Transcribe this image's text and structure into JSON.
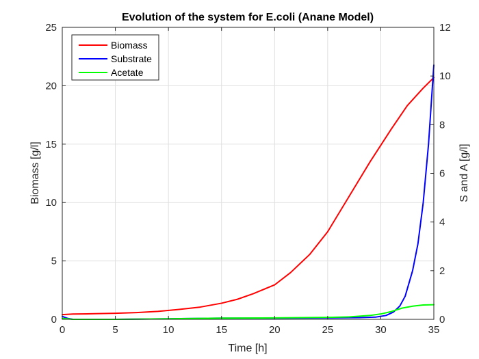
{
  "chart_data": {
    "type": "line",
    "title": "Evolution of the system for E.coli (Anane Model)",
    "xlabel": "Time [h]",
    "ylabel_left": "Biomass [g/l]",
    "ylabel_right": "S and A [g/l]",
    "xlim": [
      0,
      35
    ],
    "ylim_left": [
      0,
      25
    ],
    "ylim_right": [
      0,
      12
    ],
    "xticks": [
      "0",
      "5",
      "10",
      "15",
      "20",
      "25",
      "30",
      "35"
    ],
    "yticks_left": [
      "0",
      "5",
      "10",
      "15",
      "20",
      "25"
    ],
    "yticks_right": [
      "0",
      "2",
      "4",
      "6",
      "8",
      "10",
      "12"
    ],
    "grid": true,
    "legend_position": "top-left",
    "series": [
      {
        "name": "Biomass",
        "axis": "left",
        "color": "#ff0000",
        "x": [
          0,
          1,
          3,
          5,
          7,
          9,
          11,
          13,
          15,
          16.5,
          18,
          20,
          21.5,
          23.3,
          25,
          27,
          29,
          31,
          32.5,
          34,
          35
        ],
        "y": [
          0.4,
          0.45,
          0.48,
          0.52,
          0.58,
          0.68,
          0.85,
          1.05,
          1.38,
          1.72,
          2.2,
          2.95,
          4.0,
          5.55,
          7.5,
          10.5,
          13.5,
          16.3,
          18.3,
          19.8,
          20.7
        ]
      },
      {
        "name": "Substrate",
        "axis": "right",
        "color": "#0000ff",
        "x": [
          0,
          0.5,
          1,
          5,
          10,
          15,
          20,
          25,
          28,
          29.5,
          30.5,
          31.2,
          31.8,
          32.3,
          33,
          33.5,
          34,
          34.5,
          35
        ],
        "y": [
          0.12,
          0.04,
          0.0,
          0.0,
          0.02,
          0.05,
          0.05,
          0.06,
          0.07,
          0.09,
          0.16,
          0.3,
          0.55,
          0.95,
          2.0,
          3.1,
          4.8,
          7.2,
          10.45
        ]
      },
      {
        "name": "Acetate",
        "axis": "right",
        "color": "#00ff00",
        "x": [
          0,
          1,
          5,
          10,
          15,
          20,
          25,
          27,
          29,
          30,
          31,
          32,
          33,
          34,
          35
        ],
        "y": [
          0.04,
          0.0,
          0.0,
          0.02,
          0.05,
          0.06,
          0.08,
          0.1,
          0.16,
          0.22,
          0.32,
          0.46,
          0.54,
          0.59,
          0.6
        ]
      }
    ]
  }
}
